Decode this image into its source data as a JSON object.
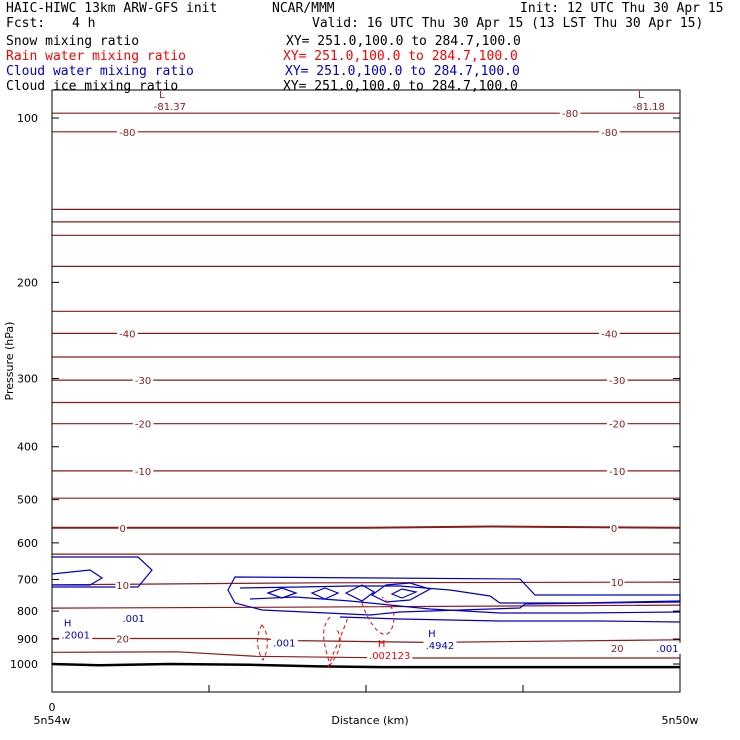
{
  "header": {
    "title_left": "HAIC-HIWC 13km ARW-GFS init",
    "org": "NCAR/MMM",
    "init": "Init: 12 UTC Thu 30 Apr 15",
    "fcst_label": "Fcst:",
    "fcst_value": "4 h",
    "valid": "Valid: 16 UTC Thu 30 Apr 15 (13 LST Thu 30 Apr 15)"
  },
  "fields": [
    {
      "name": "Snow mixing ratio",
      "xy": "XY= 251.0,100.0 to 284.7,100.0",
      "color": "#000000"
    },
    {
      "name": "Rain water mixing ratio",
      "xy": "XY= 251.0,100.0 to 284.7,100.0",
      "color": "#ff0000"
    },
    {
      "name": "Cloud water mixing ratio",
      "xy": "XY= 251.0,100.0 to 284.7,100.0",
      "color": "#0000cc"
    },
    {
      "name": "Cloud ice mixing ratio",
      "xy": "XY= 251.0,100.0 to 284.7,100.0",
      "color": "#000000"
    }
  ],
  "colors": {
    "temperature": "#8b1a1a",
    "cloud_water": "#0000cc",
    "rain_water": "#ff0000",
    "terrain": "#000000"
  },
  "chart_data": {
    "type": "line",
    "ylabel": "Pressure (hPa)",
    "xlabel": "Distance (km)",
    "y_scale": "log-pressure",
    "ylim": [
      1050,
      80
    ],
    "xlim": [
      0,
      4
    ],
    "yticks": [
      100,
      200,
      300,
      400,
      500,
      600,
      700,
      800,
      900,
      1000
    ],
    "xticks": [
      0
    ],
    "x_endpoint_labels": [
      "5n54w",
      "5n50w"
    ],
    "temperature_contours": [
      {
        "level": -80,
        "label": "-80",
        "points": [
          [
            0,
            98
          ],
          [
            4,
            98
          ]
        ]
      },
      {
        "level": -70,
        "points": [
          [
            0,
            106
          ],
          [
            4,
            106
          ]
        ]
      },
      {
        "level": -60,
        "points": [
          [
            0,
            147
          ],
          [
            4,
            147
          ]
        ]
      },
      {
        "level": -55,
        "points": [
          [
            0,
            155
          ],
          [
            4,
            155
          ]
        ]
      },
      {
        "level": -50,
        "points": [
          [
            0,
            164
          ],
          [
            4,
            164
          ]
        ]
      },
      {
        "level": -45,
        "points": [
          [
            0,
            187
          ],
          [
            4,
            187
          ]
        ]
      },
      {
        "level": -40,
        "label": "-40",
        "points": [
          [
            0,
            248
          ],
          [
            4,
            248
          ]
        ]
      },
      {
        "level": -35,
        "points": [
          [
            0,
            226
          ],
          [
            4,
            226
          ]
        ]
      },
      {
        "level": -30,
        "label": "-30",
        "points": [
          [
            0,
            302
          ],
          [
            4,
            302
          ]
        ]
      },
      {
        "level": -25,
        "points": [
          [
            0,
            274
          ],
          [
            4,
            274
          ]
        ]
      },
      {
        "level": -20,
        "label": "-20",
        "points": [
          [
            0,
            363
          ],
          [
            4,
            363
          ]
        ]
      },
      {
        "level": -15,
        "points": [
          [
            0,
            332
          ],
          [
            4,
            332
          ]
        ]
      },
      {
        "level": -10,
        "label": "-10",
        "points": [
          [
            0,
            443
          ],
          [
            4,
            443
          ]
        ]
      },
      {
        "level": -5,
        "points": [
          [
            0,
            497
          ],
          [
            4,
            497
          ]
        ]
      },
      {
        "level": 0,
        "label": "0",
        "points": [
          [
            0,
            563
          ],
          [
            2,
            563
          ],
          [
            2.8,
            560
          ],
          [
            4,
            563
          ]
        ]
      },
      {
        "level": 5,
        "points": [
          [
            0,
            629
          ],
          [
            4,
            629
          ]
        ]
      },
      {
        "level": 10,
        "label": "10",
        "points": [
          [
            0,
            716
          ],
          [
            1.7,
            710
          ],
          [
            4,
            708
          ]
        ]
      },
      {
        "level": 15,
        "points": [
          [
            0,
            790
          ],
          [
            1.5,
            787
          ],
          [
            4,
            780
          ]
        ]
      },
      {
        "level": 20,
        "label": "20",
        "points": [
          [
            0,
            898
          ],
          [
            1.3,
            898
          ],
          [
            1.55,
            906
          ],
          [
            2.4,
            913
          ],
          [
            4,
            903
          ]
        ]
      },
      {
        "level": 25,
        "points": [
          [
            0,
            952
          ],
          [
            0.8,
            950
          ],
          [
            1.3,
            968
          ],
          [
            2.2,
            975
          ],
          [
            4,
            975
          ]
        ]
      }
    ],
    "temperature_labels": [
      {
        "text": "-80",
        "x": 0.48,
        "p": 106
      },
      {
        "text": "-80",
        "x": 3.3,
        "p": 98
      },
      {
        "text": "-80",
        "x": 3.55,
        "p": 106
      },
      {
        "text": "-40",
        "x": 0.48,
        "p": 248
      },
      {
        "text": "-40",
        "x": 3.55,
        "p": 248
      },
      {
        "text": "-30",
        "x": 0.58,
        "p": 302
      },
      {
        "text": "-30",
        "x": 3.6,
        "p": 302
      },
      {
        "text": "-20",
        "x": 0.58,
        "p": 363
      },
      {
        "text": "-20",
        "x": 3.6,
        "p": 363
      },
      {
        "text": "-10",
        "x": 0.58,
        "p": 443
      },
      {
        "text": "-10",
        "x": 3.6,
        "p": 443
      },
      {
        "text": "0",
        "x": 0.45,
        "p": 563
      },
      {
        "text": "0",
        "x": 3.58,
        "p": 563
      },
      {
        "text": "10",
        "x": 0.45,
        "p": 716
      },
      {
        "text": "10",
        "x": 3.6,
        "p": 708
      },
      {
        "text": "20",
        "x": 0.45,
        "p": 898
      },
      {
        "text": "20",
        "x": 3.6,
        "p": 934
      }
    ],
    "extrema": [
      {
        "type": "L",
        "x": 0.7,
        "p": 92,
        "value": "-81.37",
        "color": "temperature"
      },
      {
        "type": "L",
        "x": 3.75,
        "p": 92,
        "value": "-81.18",
        "color": "temperature"
      },
      {
        "type": "H",
        "x": 0.1,
        "p": 853,
        "value": ".2001",
        "color": "cloud_water"
      },
      {
        "type": "H",
        "x": 2.42,
        "p": 893,
        "value": ".4942",
        "color": "cloud_water"
      },
      {
        "type": "H",
        "x": 2.1,
        "p": 931,
        "value": ".002123",
        "color": "rain_water"
      }
    ],
    "cloud_water_labels": [
      {
        "text": ".001",
        "x": 0.52,
        "p": 823
      },
      {
        "text": ".001",
        "x": 1.48,
        "p": 913
      },
      {
        "text": ".001",
        "x": 3.92,
        "p": 934
      }
    ],
    "terrain_surface": [
      [
        0,
        1000
      ],
      [
        0.3,
        1005
      ],
      [
        0.75,
        1000
      ],
      [
        1.25,
        1003
      ],
      [
        1.7,
        1010
      ],
      [
        2.1,
        1013
      ],
      [
        4,
        1013
      ]
    ]
  }
}
